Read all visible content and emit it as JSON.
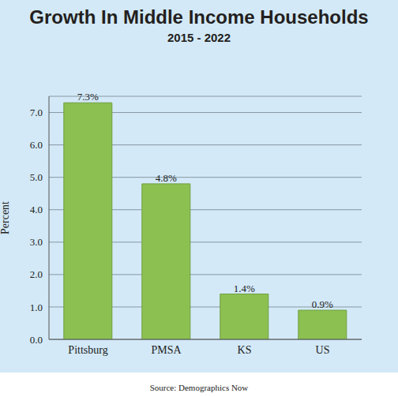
{
  "chart_data": {
    "type": "bar",
    "title": "Growth In Middle Income Households",
    "subtitle": "2015 - 2022",
    "y_label": "Percent",
    "source": "Source: Demographics Now",
    "categories": [
      "Pittsburg",
      "PMSA",
      "KS",
      "US"
    ],
    "values": [
      7.3,
      4.8,
      1.4,
      0.9
    ],
    "value_labels": [
      "7.3%",
      "4.8%",
      "1.4%",
      "0.9%"
    ],
    "data_labels": true,
    "color": "#8cc152",
    "ylim": [
      0,
      7.5
    ],
    "yticks": [
      {
        "value": 0,
        "label": "0.0"
      },
      {
        "value": 1,
        "label": "1.0"
      },
      {
        "value": 2,
        "label": "2.0"
      },
      {
        "value": 3,
        "label": "3.0"
      },
      {
        "value": 4,
        "label": "4.0"
      },
      {
        "value": 5,
        "label": "5.0"
      },
      {
        "value": 6,
        "label": "6.0"
      },
      {
        "value": 7,
        "label": "7.0"
      }
    ],
    "grid": true
  }
}
